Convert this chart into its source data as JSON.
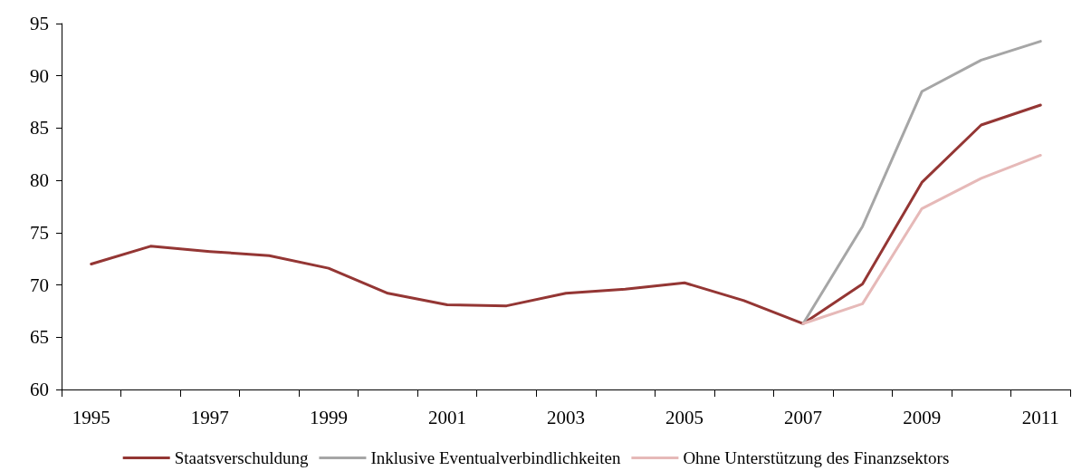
{
  "chart_data": {
    "type": "line",
    "categories": [
      "1995",
      null,
      "1997",
      null,
      "1999",
      null,
      "2001",
      null,
      "2003",
      null,
      "2005",
      null,
      "2007",
      null,
      "2009",
      null,
      "2011"
    ],
    "series": [
      {
        "name": "Staatsverschuldung",
        "color": "#943634",
        "values": [
          72.0,
          73.7,
          73.2,
          72.8,
          71.6,
          69.2,
          68.1,
          68.0,
          69.2,
          69.6,
          70.2,
          68.5,
          66.3,
          70.1,
          79.8,
          85.3,
          87.2
        ]
      },
      {
        "name": "Inklusive Eventualverbindlichkeiten",
        "color": "#a6a6a6",
        "values": [
          null,
          null,
          null,
          null,
          null,
          null,
          null,
          null,
          null,
          null,
          null,
          null,
          66.3,
          75.6,
          88.5,
          91.5,
          93.3
        ]
      },
      {
        "name": "Ohne Unterstützung des Finanzsektors",
        "color": "#e6b9b8",
        "values": [
          null,
          null,
          null,
          null,
          null,
          null,
          null,
          null,
          null,
          null,
          null,
          null,
          66.3,
          68.2,
          77.3,
          80.2,
          82.4
        ]
      }
    ],
    "ylim": [
      60,
      95
    ],
    "yticks": [
      60,
      65,
      70,
      75,
      80,
      85,
      90,
      95
    ],
    "grid": false,
    "legend": "bottom",
    "marker": "none",
    "line_style": "solid"
  }
}
